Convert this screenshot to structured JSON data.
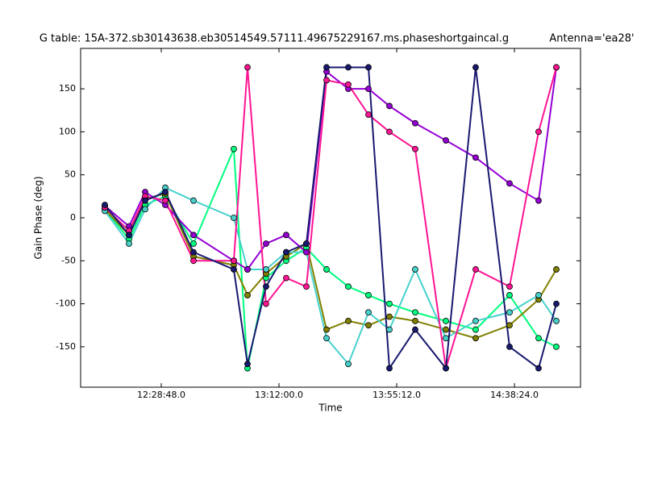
{
  "chart_data": {
    "type": "line",
    "title": "G table: 15A-372.sb30143638.eb30514549.57111.49675229167.ms.phaseshortgaincal.g",
    "subtitle": "Antenna='ea28'",
    "xlabel": "Time",
    "ylabel": "Gain Phase (deg)",
    "x": [
      43686,
      44218,
      44573,
      45017,
      45638,
      46525,
      46827,
      47235,
      47679,
      48123,
      48567,
      49046,
      49490,
      49951,
      50519,
      51194,
      51850,
      52596,
      53235,
      53626
    ],
    "xlim": [
      43153,
      54158
    ],
    "xticks": [
      {
        "value": 44928,
        "label": "12:28:48.0"
      },
      {
        "value": 47520,
        "label": "13:12:00.0"
      },
      {
        "value": 50112,
        "label": "13:55:12.0"
      },
      {
        "value": 52704,
        "label": "14:38:24.0"
      }
    ],
    "ylim": [
      -197,
      197
    ],
    "yticks": [
      -150,
      -100,
      -50,
      0,
      50,
      100,
      150
    ],
    "grid": false,
    "series": [
      {
        "color": "#00ff7f",
        "values": [
          10,
          -25,
          15,
          25,
          -30,
          80,
          -175,
          -70,
          -50,
          -35,
          -60,
          -80,
          -90,
          -100,
          -110,
          -120,
          -130,
          -90,
          -140,
          -150
        ]
      },
      {
        "color": "#808000",
        "values": [
          10,
          -20,
          22,
          28,
          -45,
          -55,
          -90,
          -65,
          -45,
          -30,
          -130,
          -120,
          -125,
          -115,
          -120,
          -130,
          -140,
          -125,
          -95,
          -60
        ]
      },
      {
        "color": "#48d1cc",
        "values": [
          8,
          -30,
          10,
          35,
          20,
          0,
          -60,
          -60,
          -40,
          -40,
          -140,
          -170,
          -110,
          -130,
          -60,
          -140,
          -120,
          -110,
          -90,
          -120
        ]
      },
      {
        "color": "#9400d3",
        "values": [
          14,
          -10,
          30,
          15,
          -20,
          -50,
          -60,
          -30,
          -20,
          -40,
          170,
          150,
          150,
          130,
          110,
          90,
          70,
          40,
          20,
          175
        ]
      },
      {
        "color": "#ff1493",
        "values": [
          12,
          -15,
          25,
          20,
          -50,
          -50,
          175,
          -100,
          -70,
          -80,
          160,
          155,
          120,
          100,
          80,
          -175,
          -60,
          -80,
          100,
          175
        ]
      },
      {
        "color": "#191970",
        "values": [
          15,
          -20,
          20,
          30,
          -40,
          -60,
          -170,
          -80,
          -40,
          -30,
          175,
          175,
          175,
          -175,
          -130,
          -175,
          175,
          -150,
          -175,
          -100
        ]
      }
    ]
  }
}
